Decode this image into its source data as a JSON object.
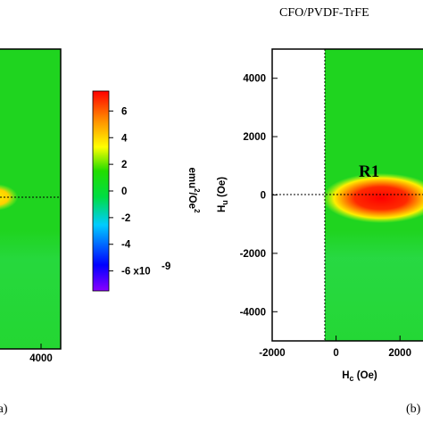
{
  "header": {
    "title": "CFO/PVDF-TrFE"
  },
  "colorbar": {
    "ticks": [
      "6",
      "4",
      "2",
      "0",
      "-2",
      "-4",
      "-6 x10"
    ],
    "exponent": "-9",
    "unit": "emu",
    "unit_exp": "2",
    "unit_denom": "/Oe",
    "unit_denom_exp": "2",
    "colors": [
      "#7f00ff",
      "#0000ff",
      "#00e5ff",
      "#00e000",
      "#ffff00",
      "#ff8000",
      "#ff0000"
    ],
    "range": [
      -7.5,
      7.5
    ]
  },
  "chart_data": [
    {
      "type": "heatmap",
      "panel_label": "(a)",
      "x_ticks": [
        "4000"
      ],
      "background_color": "#1fd41f",
      "features": [
        {
          "name": "",
          "description": "yellow lobe at Hu = 0",
          "color": "#ffe000"
        }
      ]
    },
    {
      "type": "heatmap",
      "panel_label": "(b)",
      "xlabel": "H",
      "xlabel_sub": "c",
      "xlabel_unit": " (Oe)",
      "ylabel": "H",
      "ylabel_sub": "u",
      "ylabel_unit": " (Oe)",
      "xlim": [
        -2000,
        3000
      ],
      "ylim": [
        -5000,
        5000
      ],
      "x_ticks": [
        "-2000",
        "0",
        "2000"
      ],
      "y_ticks": [
        "4000",
        "2000",
        "0",
        "-2000",
        "-4000"
      ],
      "background_color": "#1fd41f",
      "annotations": [
        {
          "text": "R1"
        }
      ],
      "peak": {
        "hc": 1900,
        "hu": 0,
        "value": 7.2
      }
    }
  ]
}
